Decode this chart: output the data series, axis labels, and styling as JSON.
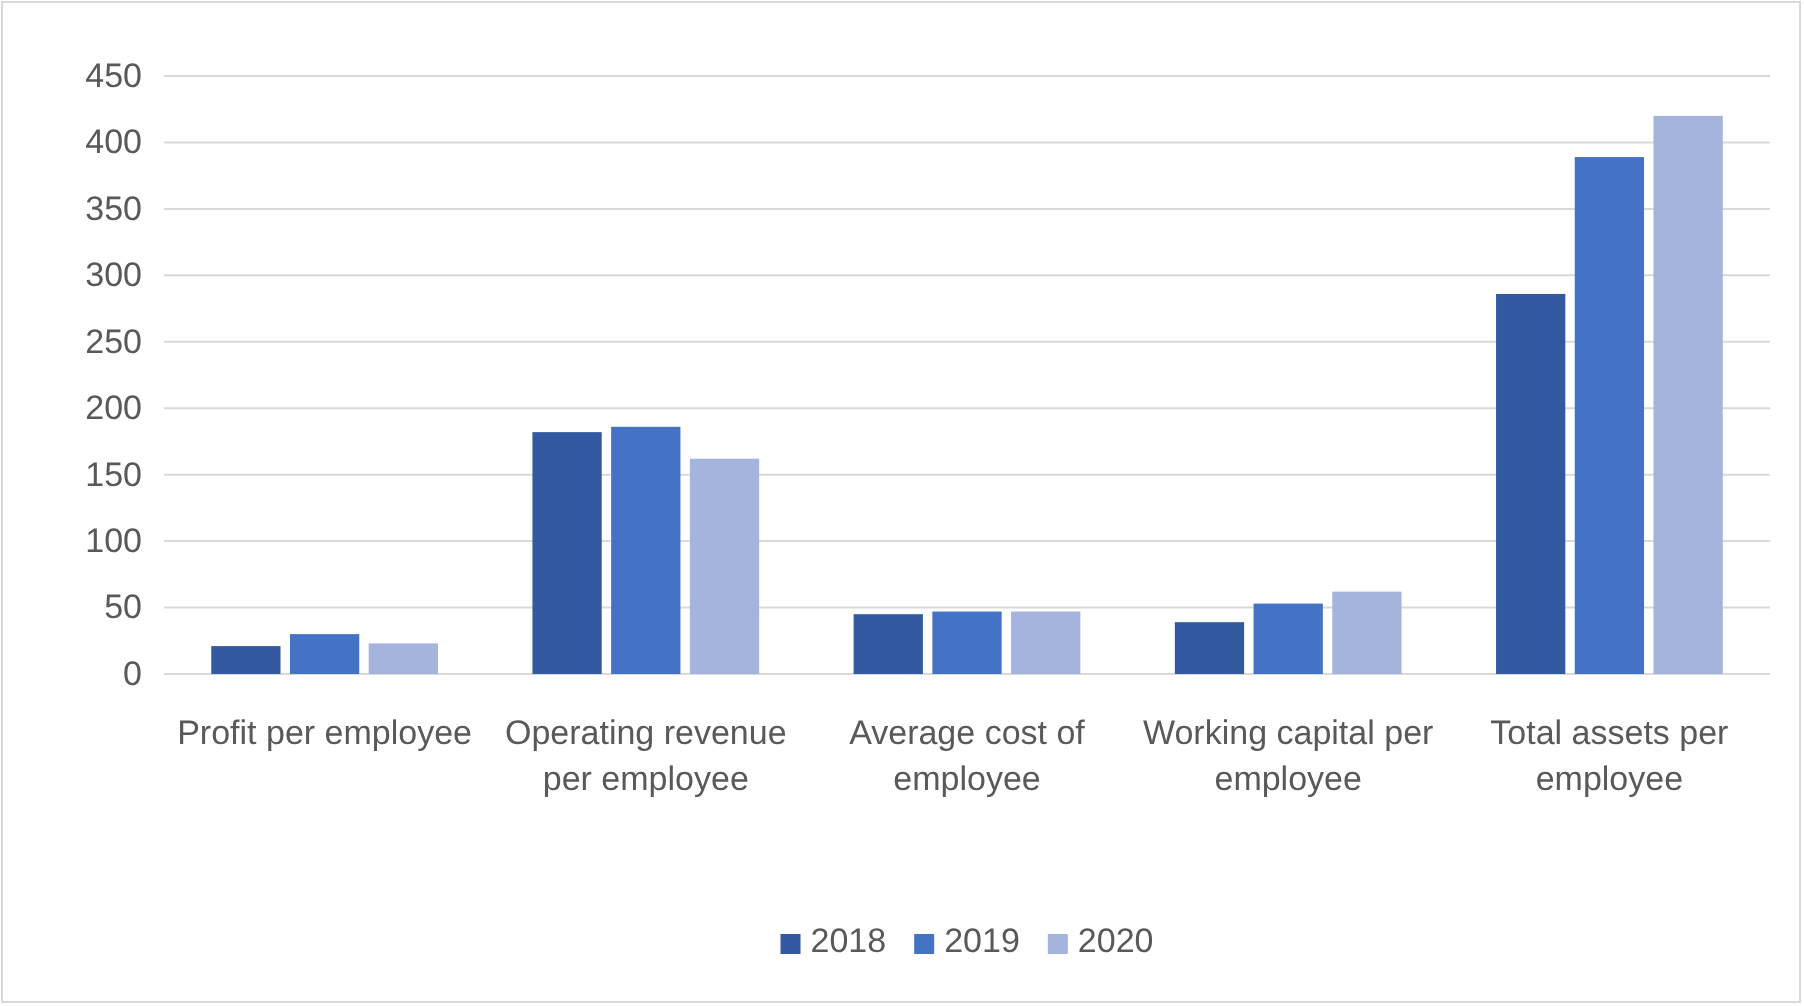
{
  "chart_data": {
    "type": "bar",
    "categories": [
      "Profit per employee",
      "Operating revenue per employee",
      "Average cost of employee",
      "Working capital per employee",
      "Total assets per employee"
    ],
    "series": [
      {
        "name": "2018",
        "color": "#335aa1",
        "values": [
          21,
          182,
          45,
          39,
          286
        ]
      },
      {
        "name": "2019",
        "color": "#4472c4",
        "values": [
          30,
          186,
          47,
          53,
          389
        ]
      },
      {
        "name": "2020",
        "color": "#a5b4dc",
        "values": [
          23,
          162,
          47,
          62,
          420
        ]
      }
    ],
    "ylim": [
      0,
      450
    ],
    "yticks": [
      0,
      50,
      100,
      150,
      200,
      250,
      300,
      350,
      400,
      450
    ],
    "grid": "y",
    "legend": "bottom"
  }
}
